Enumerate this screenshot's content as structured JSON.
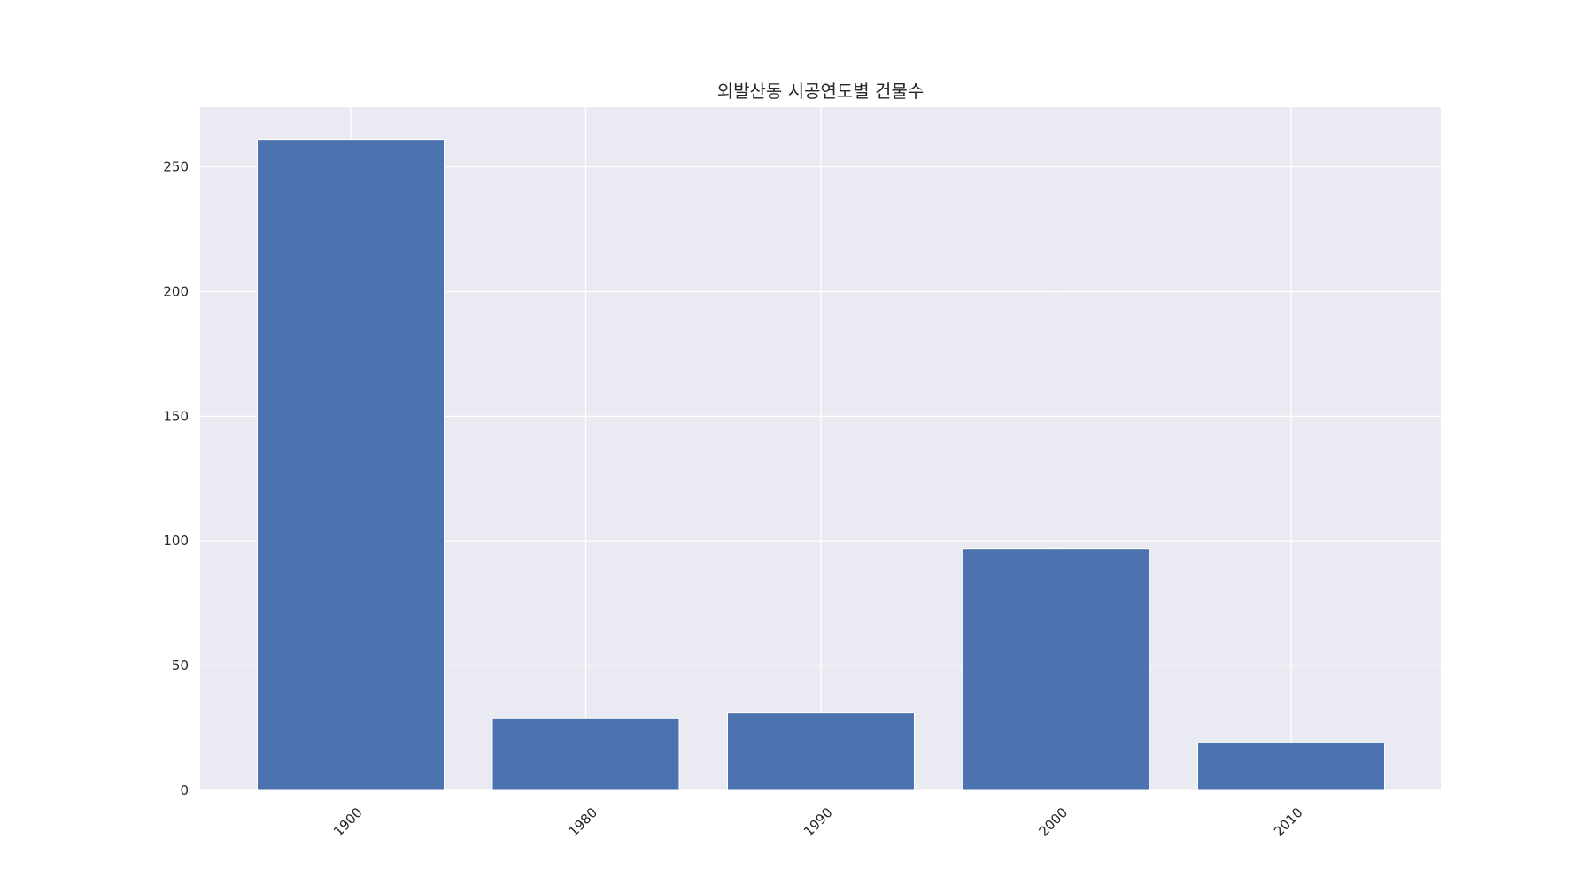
{
  "chart_data": {
    "type": "bar",
    "title": "외발산동 시공연도별 건물수",
    "xlabel": "",
    "ylabel": "",
    "categories": [
      "1900",
      "1980",
      "1990",
      "2000",
      "2010"
    ],
    "values": [
      261,
      29,
      31,
      97,
      19
    ],
    "ylim": [
      0,
      274
    ],
    "yticks": [
      0,
      50,
      100,
      150,
      200,
      250
    ],
    "grid": true,
    "legend": "none",
    "colors": {
      "bar": "#4c72b0",
      "plot_background": "#eaeaf2",
      "grid": "#ffffff",
      "text": "#262626"
    }
  }
}
